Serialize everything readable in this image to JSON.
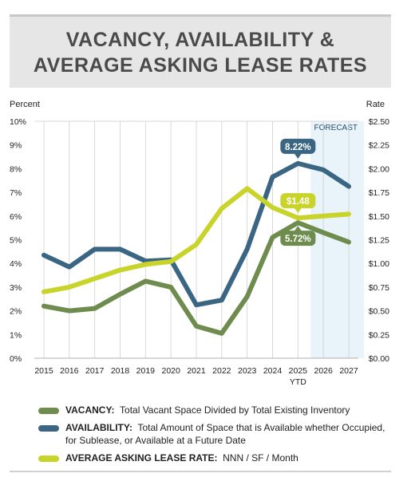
{
  "title_lines": [
    "VACANCY, AVAILABILITY &",
    "AVERAGE ASKING LEASE RATES"
  ],
  "colors": {
    "vacancy": "#6e8c4e",
    "availability": "#3a6684",
    "rate": "#c8d42a",
    "forecast_shade": "#e8f3fa"
  },
  "chart_data": {
    "type": "line",
    "x": [
      "2015",
      "2016",
      "2017",
      "2018",
      "2019",
      "2020",
      "2021",
      "2022",
      "2023",
      "2024",
      "2025",
      "2026",
      "2027"
    ],
    "x_sublabel": {
      "2025": "YTD"
    },
    "left_axis": {
      "label": "Percent",
      "ticks": [
        "0%",
        "1%",
        "2%",
        "3%",
        "4%",
        "5%",
        "6%",
        "7%",
        "8%",
        "9%",
        "10%"
      ],
      "range": [
        0,
        10
      ]
    },
    "right_axis": {
      "label": "Rate",
      "ticks": [
        "$0.00",
        "$0.25",
        "$0.50",
        "$0.75",
        "$1.00",
        "$1.25",
        "$1.50",
        "$1.75",
        "$2.00",
        "$2.25",
        "$2.50"
      ],
      "range": [
        0,
        2.5
      ]
    },
    "grid": "vertical",
    "forecast": {
      "label": "FORECAST",
      "start": "2026",
      "end": "2027"
    },
    "series": [
      {
        "key": "vacancy",
        "axis": "left",
        "values": [
          2.2,
          2.0,
          2.1,
          2.7,
          3.25,
          3.0,
          1.35,
          1.05,
          2.6,
          5.1,
          5.72,
          5.3,
          4.9
        ]
      },
      {
        "key": "availability",
        "axis": "left",
        "values": [
          4.35,
          3.85,
          4.6,
          4.6,
          4.1,
          4.15,
          2.25,
          2.45,
          4.6,
          7.65,
          8.22,
          7.95,
          7.25
        ]
      },
      {
        "key": "rate",
        "axis": "right",
        "values": [
          0.7,
          0.75,
          0.84,
          0.93,
          0.99,
          1.02,
          1.2,
          1.58,
          1.79,
          1.59,
          1.48,
          1.5,
          1.52
        ]
      }
    ],
    "callouts": [
      {
        "series": "availability",
        "index": 10,
        "text": "8.22%"
      },
      {
        "series": "rate",
        "index": 10,
        "text": "$1.48"
      },
      {
        "series": "vacancy",
        "index": 10,
        "text": "5.72%"
      }
    ]
  },
  "legend": [
    {
      "key": "vacancy",
      "name": "VACANCY:",
      "desc": "Total Vacant Space Divided by Total Existing Inventory"
    },
    {
      "key": "availability",
      "name": "AVAILABILITY:",
      "desc": "Total Amount of Space that is Available whether Occupied, for Sublease, or Available at a Future Date"
    },
    {
      "key": "rate",
      "name": "AVERAGE ASKING LEASE RATE:",
      "desc": "NNN / SF / Month"
    }
  ]
}
